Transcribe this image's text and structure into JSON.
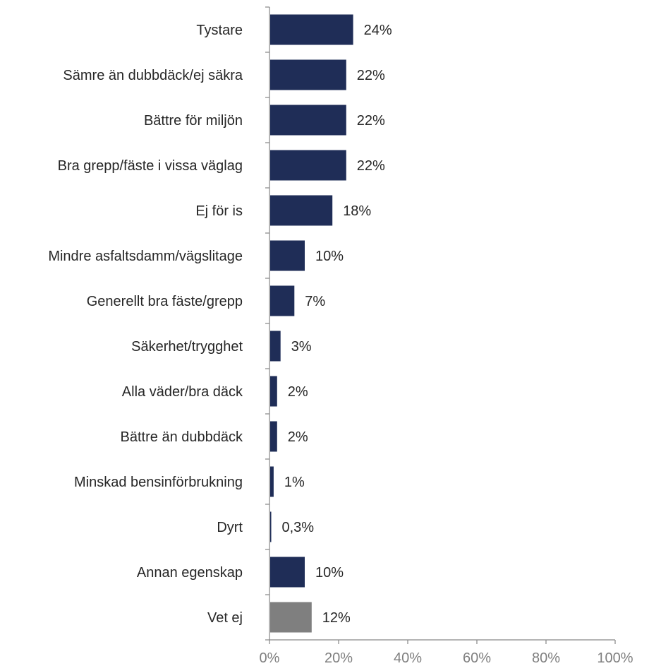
{
  "chart_data": {
    "type": "bar",
    "orientation": "horizontal",
    "categories": [
      "Tystare",
      "Sämre än dubbdäck/ej säkra",
      "Bättre för miljön",
      "Bra grepp/fäste i vissa väglag",
      "Ej för is",
      "Mindre asfaltsdamm/vägslitage",
      "Generellt bra fäste/grepp",
      "Säkerhet/trygghet",
      "Alla väder/bra däck",
      "Bättre än dubbdäck",
      "Minskad bensinförbrukning",
      "Dyrt",
      "Annan egenskap",
      "Vet ej"
    ],
    "values": [
      24,
      22,
      22,
      22,
      18,
      10,
      7,
      3,
      2,
      2,
      1,
      0.3,
      10,
      12
    ],
    "value_labels": [
      "24%",
      "22%",
      "22%",
      "22%",
      "18%",
      "10%",
      "7%",
      "3%",
      "2%",
      "2%",
      "1%",
      "0,3%",
      "10%",
      "12%"
    ],
    "bar_colors": [
      "#1f2d57",
      "#1f2d57",
      "#1f2d57",
      "#1f2d57",
      "#1f2d57",
      "#1f2d57",
      "#1f2d57",
      "#1f2d57",
      "#1f2d57",
      "#1f2d57",
      "#1f2d57",
      "#1f2d57",
      "#1f2d57",
      "#7f7f7f"
    ],
    "x_ticks": [
      "0%",
      "20%",
      "40%",
      "60%",
      "80%",
      "100%"
    ],
    "xlim": [
      0,
      100
    ],
    "grid": false,
    "legend": "none",
    "title": "",
    "xlabel": "",
    "ylabel": ""
  }
}
